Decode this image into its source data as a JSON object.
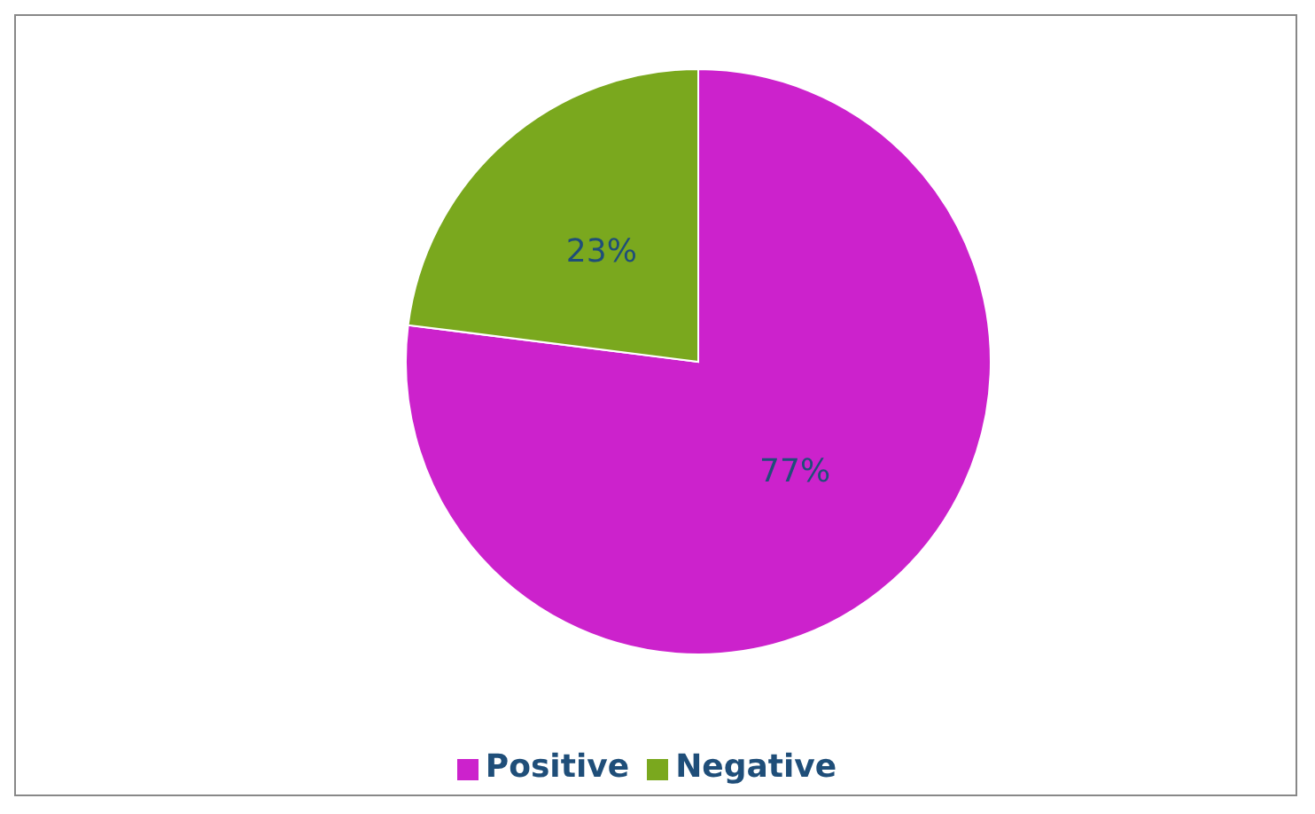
{
  "chart_data": {
    "type": "pie",
    "categories": [
      "Positive",
      "Negative"
    ],
    "values": [
      77,
      23
    ],
    "colors": [
      "#cc22cc",
      "#7aa81e"
    ],
    "value_labels": [
      "77%",
      "23%"
    ],
    "legend": "bottom"
  }
}
